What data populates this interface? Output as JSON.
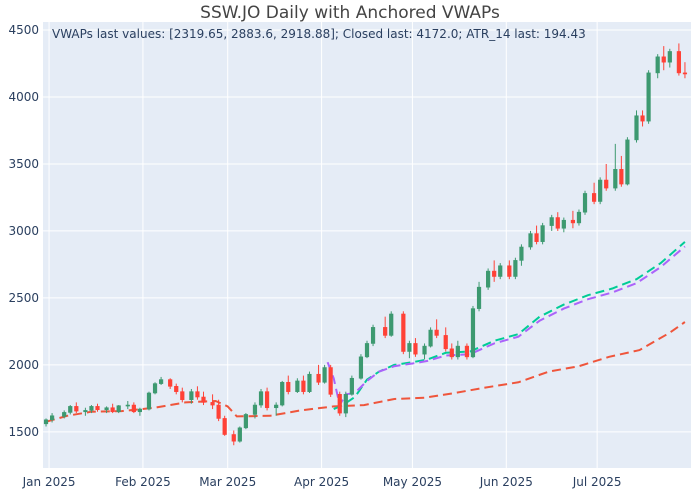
{
  "chart_data": {
    "type": "candlestick",
    "title": "SSW.JO Daily with Anchored VWAPs",
    "annotation": "VWAPs last values: [2319.65, 2883.6, 2918.88]; Closed last: 4172.0; ATR_14 last: 194.43",
    "x_axis": {
      "ticks": [
        "Jan 2025",
        "Feb 2025",
        "Mar 2025",
        "Apr 2025",
        "May 2025",
        "Jun 2025",
        "Jul 2025"
      ],
      "range": [
        "2024-12-30",
        "2025-08-01"
      ]
    },
    "y_axis": {
      "ticks": [
        1500,
        2000,
        2500,
        3000,
        3500,
        4000,
        4500
      ],
      "range": [
        1230,
        4560
      ]
    },
    "grid": true,
    "legend": "none",
    "colors": {
      "increasing": "#3d9970",
      "decreasing": "#ff4136",
      "background": "#e5ecf6",
      "vwap_1": "#ef553b",
      "vwap_2": "#00cc96",
      "vwap_3": "#ab63fa"
    },
    "candles": [
      [
        "2024-12-31",
        1560,
        1600,
        1540,
        1590
      ],
      [
        "2025-01-02",
        1590,
        1640,
        1570,
        1620
      ],
      [
        "2025-01-06",
        1615,
        1660,
        1600,
        1645
      ],
      [
        "2025-01-08",
        1645,
        1700,
        1630,
        1690
      ],
      [
        "2025-01-10",
        1690,
        1720,
        1640,
        1655
      ],
      [
        "2025-01-13",
        1650,
        1680,
        1620,
        1660
      ],
      [
        "2025-01-15",
        1660,
        1700,
        1640,
        1690
      ],
      [
        "2025-01-17",
        1690,
        1710,
        1650,
        1665
      ],
      [
        "2025-01-20",
        1665,
        1690,
        1640,
        1680
      ],
      [
        "2025-01-22",
        1680,
        1710,
        1640,
        1650
      ],
      [
        "2025-01-24",
        1650,
        1700,
        1640,
        1695
      ],
      [
        "2025-01-27",
        1695,
        1730,
        1670,
        1700
      ],
      [
        "2025-01-29",
        1700,
        1720,
        1640,
        1650
      ],
      [
        "2025-01-31",
        1650,
        1680,
        1620,
        1670
      ],
      [
        "2025-02-03",
        1670,
        1800,
        1660,
        1790
      ],
      [
        "2025-02-05",
        1790,
        1870,
        1780,
        1860
      ],
      [
        "2025-02-07",
        1860,
        1910,
        1850,
        1890
      ],
      [
        "2025-02-10",
        1890,
        1900,
        1820,
        1840
      ],
      [
        "2025-02-12",
        1840,
        1860,
        1780,
        1800
      ],
      [
        "2025-02-14",
        1800,
        1830,
        1720,
        1740
      ],
      [
        "2025-02-17",
        1740,
        1820,
        1710,
        1800
      ],
      [
        "2025-02-19",
        1800,
        1840,
        1740,
        1760
      ],
      [
        "2025-02-21",
        1760,
        1800,
        1700,
        1720
      ],
      [
        "2025-02-24",
        1720,
        1780,
        1670,
        1700
      ],
      [
        "2025-02-26",
        1700,
        1740,
        1580,
        1600
      ],
      [
        "2025-02-28",
        1600,
        1620,
        1470,
        1480
      ],
      [
        "2025-03-03",
        1480,
        1510,
        1400,
        1430
      ],
      [
        "2025-03-05",
        1430,
        1540,
        1420,
        1530
      ],
      [
        "2025-03-07",
        1530,
        1640,
        1520,
        1630
      ],
      [
        "2025-03-10",
        1630,
        1720,
        1600,
        1700
      ],
      [
        "2025-03-12",
        1700,
        1820,
        1680,
        1800
      ],
      [
        "2025-03-14",
        1800,
        1830,
        1660,
        1680
      ],
      [
        "2025-03-17",
        1680,
        1720,
        1620,
        1700
      ],
      [
        "2025-03-19",
        1700,
        1880,
        1690,
        1870
      ],
      [
        "2025-03-21",
        1870,
        1920,
        1780,
        1800
      ],
      [
        "2025-03-24",
        1800,
        1900,
        1790,
        1880
      ],
      [
        "2025-03-26",
        1880,
        1920,
        1780,
        1800
      ],
      [
        "2025-03-28",
        1800,
        1950,
        1790,
        1930
      ],
      [
        "2025-03-31",
        1930,
        2000,
        1850,
        1870
      ],
      [
        "2025-04-02",
        1870,
        2000,
        1860,
        1980
      ],
      [
        "2025-04-04",
        1980,
        2000,
        1760,
        1780
      ],
      [
        "2025-04-07",
        1780,
        1800,
        1620,
        1640
      ],
      [
        "2025-04-09",
        1640,
        1800,
        1610,
        1780
      ],
      [
        "2025-04-11",
        1780,
        1920,
        1770,
        1900
      ],
      [
        "2025-04-14",
        1900,
        2080,
        1890,
        2060
      ],
      [
        "2025-04-16",
        2060,
        2180,
        2050,
        2160
      ],
      [
        "2025-04-18",
        2160,
        2300,
        2140,
        2280
      ],
      [
        "2025-04-22",
        2280,
        2360,
        2200,
        2220
      ],
      [
        "2025-04-24",
        2220,
        2400,
        2210,
        2380
      ],
      [
        "2025-04-28",
        2380,
        2400,
        2080,
        2100
      ],
      [
        "2025-04-30",
        2100,
        2180,
        2050,
        2160
      ],
      [
        "2025-05-02",
        2160,
        2200,
        2060,
        2080
      ],
      [
        "2025-05-05",
        2080,
        2160,
        2040,
        2140
      ],
      [
        "2025-05-07",
        2140,
        2280,
        2130,
        2260
      ],
      [
        "2025-05-09",
        2260,
        2340,
        2200,
        2220
      ],
      [
        "2025-05-12",
        2220,
        2280,
        2100,
        2120
      ],
      [
        "2025-05-14",
        2120,
        2160,
        2040,
        2060
      ],
      [
        "2025-05-16",
        2060,
        2180,
        2040,
        2140
      ],
      [
        "2025-05-19",
        2140,
        2160,
        2040,
        2060
      ],
      [
        "2025-05-21",
        2060,
        2440,
        2050,
        2420
      ],
      [
        "2025-05-23",
        2420,
        2620,
        2400,
        2580
      ],
      [
        "2025-05-26",
        2580,
        2720,
        2560,
        2700
      ],
      [
        "2025-05-28",
        2700,
        2780,
        2620,
        2660
      ],
      [
        "2025-05-30",
        2660,
        2760,
        2640,
        2740
      ],
      [
        "2025-06-02",
        2740,
        2780,
        2640,
        2660
      ],
      [
        "2025-06-04",
        2660,
        2800,
        2640,
        2780
      ],
      [
        "2025-06-06",
        2780,
        2900,
        2740,
        2880
      ],
      [
        "2025-06-09",
        2880,
        3000,
        2860,
        2980
      ],
      [
        "2025-06-11",
        2980,
        3040,
        2900,
        2920
      ],
      [
        "2025-06-13",
        2920,
        3060,
        2900,
        3040
      ],
      [
        "2025-06-16",
        3040,
        3120,
        3000,
        3100
      ],
      [
        "2025-06-18",
        3100,
        3140,
        3000,
        3020
      ],
      [
        "2025-06-20",
        3020,
        3100,
        2990,
        3080
      ],
      [
        "2025-06-23",
        3080,
        3150,
        3020,
        3060
      ],
      [
        "2025-06-25",
        3060,
        3160,
        3040,
        3140
      ],
      [
        "2025-06-27",
        3140,
        3300,
        3120,
        3280
      ],
      [
        "2025-06-30",
        3280,
        3360,
        3200,
        3220
      ],
      [
        "2025-07-02",
        3220,
        3400,
        3200,
        3380
      ],
      [
        "2025-07-04",
        3380,
        3500,
        3300,
        3320
      ],
      [
        "2025-07-07",
        3320,
        3650,
        3300,
        3460
      ],
      [
        "2025-07-09",
        3460,
        3560,
        3330,
        3350
      ],
      [
        "2025-07-11",
        3350,
        3700,
        3340,
        3680
      ],
      [
        "2025-07-14",
        3680,
        3900,
        3660,
        3860
      ],
      [
        "2025-07-16",
        3860,
        3900,
        3780,
        3820
      ],
      [
        "2025-07-18",
        3820,
        4200,
        3800,
        4180
      ],
      [
        "2025-07-21",
        4180,
        4320,
        4140,
        4300
      ],
      [
        "2025-07-23",
        4300,
        4380,
        4200,
        4260
      ],
      [
        "2025-07-25",
        4260,
        4360,
        4220,
        4340
      ],
      [
        "2025-07-28",
        4340,
        4400,
        4160,
        4180
      ],
      [
        "2025-07-30",
        4180,
        4260,
        4140,
        4172
      ]
    ],
    "vwap_series": [
      {
        "color_key": "vwap_1",
        "points": [
          [
            "2024-12-31",
            1575
          ],
          [
            "2025-01-07",
            1620
          ],
          [
            "2025-01-15",
            1650
          ],
          [
            "2025-01-25",
            1655
          ],
          [
            "2025-02-05",
            1680
          ],
          [
            "2025-02-15",
            1720
          ],
          [
            "2025-02-25",
            1730
          ],
          [
            "2025-03-01",
            1690
          ],
          [
            "2025-03-04",
            1615
          ],
          [
            "2025-03-15",
            1620
          ],
          [
            "2025-03-25",
            1660
          ],
          [
            "2025-04-05",
            1690
          ],
          [
            "2025-04-15",
            1700
          ],
          [
            "2025-04-25",
            1745
          ],
          [
            "2025-05-05",
            1755
          ],
          [
            "2025-05-15",
            1790
          ],
          [
            "2025-05-25",
            1830
          ],
          [
            "2025-06-05",
            1870
          ],
          [
            "2025-06-15",
            1950
          ],
          [
            "2025-06-25",
            1990
          ],
          [
            "2025-07-05",
            2060
          ],
          [
            "2025-07-15",
            2110
          ],
          [
            "2025-07-25",
            2240
          ],
          [
            "2025-07-30",
            2320
          ]
        ]
      },
      {
        "color_key": "vwap_2",
        "points": [
          [
            "2025-04-05",
            1670
          ],
          [
            "2025-04-08",
            1700
          ],
          [
            "2025-04-12",
            1760
          ],
          [
            "2025-04-16",
            1890
          ],
          [
            "2025-04-20",
            1950
          ],
          [
            "2025-04-25",
            2000
          ],
          [
            "2025-05-01",
            2020
          ],
          [
            "2025-05-06",
            2040
          ],
          [
            "2025-05-12",
            2090
          ],
          [
            "2025-05-20",
            2100
          ],
          [
            "2025-05-28",
            2180
          ],
          [
            "2025-06-05",
            2230
          ],
          [
            "2025-06-12",
            2360
          ],
          [
            "2025-06-20",
            2450
          ],
          [
            "2025-06-28",
            2520
          ],
          [
            "2025-07-06",
            2570
          ],
          [
            "2025-07-14",
            2640
          ],
          [
            "2025-07-22",
            2760
          ],
          [
            "2025-07-30",
            2918
          ]
        ]
      },
      {
        "color_key": "vwap_3",
        "points": [
          [
            "2025-04-03",
            2020
          ],
          [
            "2025-04-05",
            1900
          ],
          [
            "2025-04-07",
            1700
          ],
          [
            "2025-04-09",
            1780
          ],
          [
            "2025-04-12",
            1790
          ],
          [
            "2025-04-16",
            1880
          ],
          [
            "2025-04-20",
            1950
          ],
          [
            "2025-04-25",
            1990
          ],
          [
            "2025-05-01",
            2010
          ],
          [
            "2025-05-06",
            2030
          ],
          [
            "2025-05-12",
            2070
          ],
          [
            "2025-05-20",
            2080
          ],
          [
            "2025-05-28",
            2160
          ],
          [
            "2025-06-05",
            2210
          ],
          [
            "2025-06-12",
            2330
          ],
          [
            "2025-06-20",
            2420
          ],
          [
            "2025-06-28",
            2490
          ],
          [
            "2025-07-06",
            2540
          ],
          [
            "2025-07-14",
            2610
          ],
          [
            "2025-07-22",
            2730
          ],
          [
            "2025-07-30",
            2884
          ]
        ]
      }
    ]
  }
}
